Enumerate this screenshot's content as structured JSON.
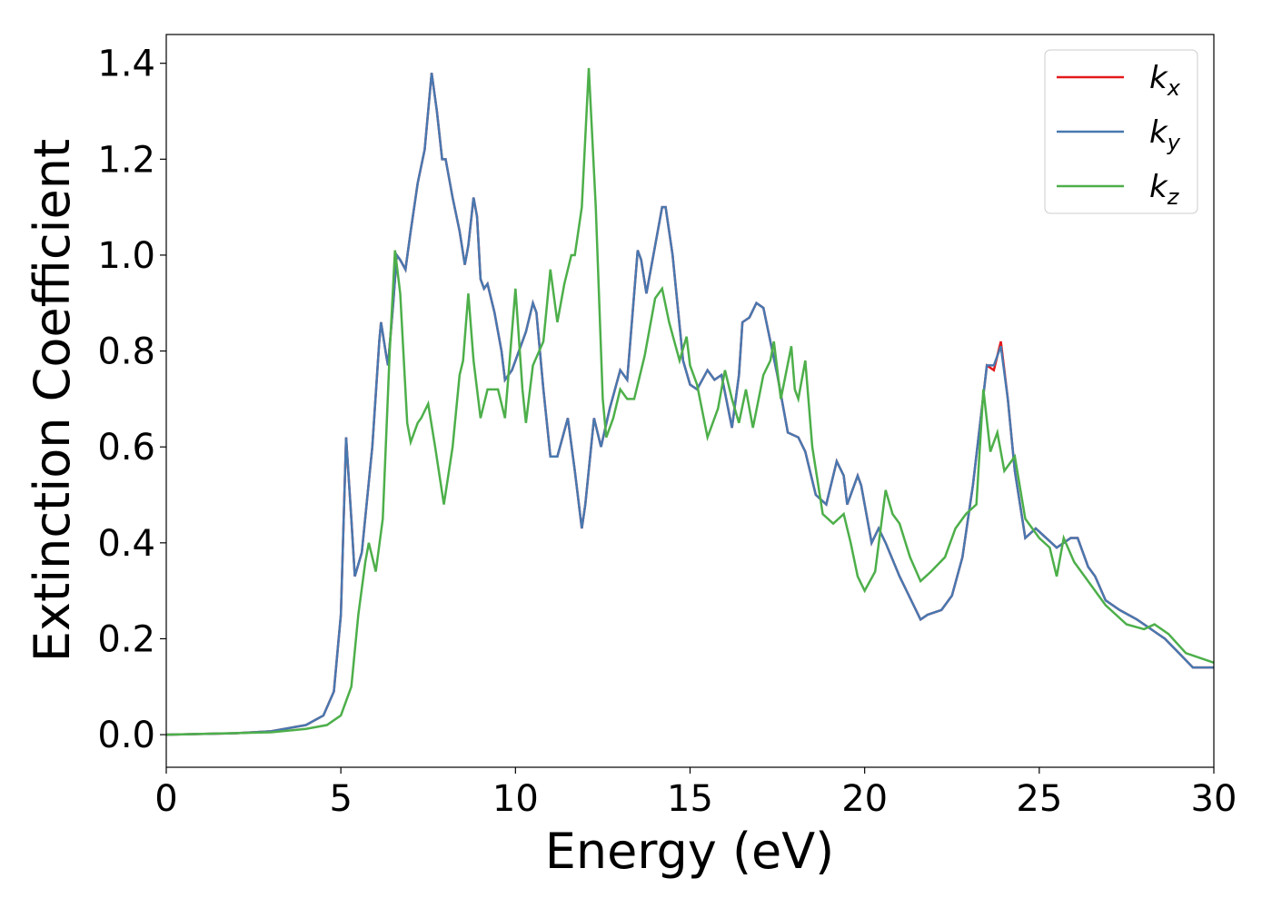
{
  "chart_data": {
    "type": "line",
    "xlabel": "Energy (eV)",
    "ylabel": "Extinction Coefficient",
    "xlim": [
      0,
      30
    ],
    "xticks": [
      0,
      5,
      10,
      15,
      20,
      25,
      30
    ],
    "ylim": [
      -0.068,
      1.46
    ],
    "yticks": [
      {
        "value": 0,
        "label": "0.0"
      },
      0.2,
      0.4,
      0.6,
      0.8,
      {
        "value": 1,
        "label": "1.0"
      },
      1.2,
      1.4
    ],
    "legend": "upper right",
    "series": [
      {
        "name": "kx",
        "color": "#e41a1c",
        "x": [
          0,
          2,
          3,
          4,
          4.5,
          4.8,
          5.0,
          5.15,
          5.3,
          5.4,
          5.6,
          5.9,
          6.1,
          6.15,
          6.3,
          6.35,
          6.5,
          6.6,
          6.7,
          6.85,
          7.0,
          7.2,
          7.4,
          7.6,
          7.75,
          7.9,
          8.0,
          8.2,
          8.4,
          8.55,
          8.65,
          8.8,
          8.9,
          9.0,
          9.1,
          9.2,
          9.4,
          9.6,
          9.7,
          9.9,
          10.1,
          10.3,
          10.5,
          10.6,
          10.8,
          11.0,
          11.2,
          11.5,
          11.7,
          11.9,
          12.0,
          12.25,
          12.45,
          12.7,
          13.0,
          13.2,
          13.5,
          13.6,
          13.75,
          14.0,
          14.2,
          14.3,
          14.5,
          14.8,
          15.0,
          15.2,
          15.5,
          15.7,
          15.9,
          16.2,
          16.4,
          16.5,
          16.7,
          16.9,
          17.1,
          17.3,
          17.5,
          17.8,
          18.1,
          18.3,
          18.6,
          18.9,
          19.2,
          19.4,
          19.5,
          19.8,
          19.9,
          20.2,
          20.4,
          20.6,
          21.0,
          21.2,
          21.6,
          21.8,
          22.2,
          22.5,
          22.8,
          23.1,
          23.5,
          23.7,
          23.9,
          24.1,
          24.3,
          24.6,
          24.9,
          25.2,
          25.5,
          25.9,
          26.1,
          26.4,
          26.6,
          26.9,
          27.3,
          27.8,
          28.2,
          28.6,
          29.0,
          29.4,
          29.8,
          30
        ],
        "values": [
          0,
          0.003,
          0.007,
          0.02,
          0.04,
          0.09,
          0.25,
          0.62,
          0.45,
          0.33,
          0.38,
          0.6,
          0.82,
          0.86,
          0.79,
          0.77,
          0.9,
          1.0,
          0.99,
          0.97,
          1.05,
          1.15,
          1.22,
          1.38,
          1.3,
          1.2,
          1.2,
          1.12,
          1.05,
          0.98,
          1.02,
          1.12,
          1.08,
          0.95,
          0.93,
          0.94,
          0.88,
          0.8,
          0.74,
          0.76,
          0.8,
          0.84,
          0.9,
          0.88,
          0.72,
          0.58,
          0.58,
          0.66,
          0.55,
          0.43,
          0.48,
          0.66,
          0.6,
          0.68,
          0.76,
          0.74,
          1.01,
          0.99,
          0.92,
          1.02,
          1.1,
          1.1,
          1.0,
          0.78,
          0.73,
          0.72,
          0.76,
          0.74,
          0.75,
          0.64,
          0.75,
          0.86,
          0.87,
          0.9,
          0.89,
          0.82,
          0.75,
          0.63,
          0.62,
          0.59,
          0.5,
          0.48,
          0.57,
          0.54,
          0.48,
          0.54,
          0.52,
          0.4,
          0.43,
          0.4,
          0.33,
          0.3,
          0.24,
          0.25,
          0.26,
          0.29,
          0.37,
          0.52,
          0.77,
          0.76,
          0.82,
          0.7,
          0.55,
          0.41,
          0.43,
          0.41,
          0.39,
          0.41,
          0.41,
          0.35,
          0.33,
          0.28,
          0.26,
          0.24,
          0.22,
          0.2,
          0.17,
          0.14,
          0.14,
          0.14
        ]
      },
      {
        "name": "ky",
        "color": "#4878b0",
        "x": [
          0,
          2,
          3,
          4,
          4.5,
          4.8,
          5.0,
          5.15,
          5.3,
          5.4,
          5.6,
          5.9,
          6.1,
          6.15,
          6.3,
          6.35,
          6.5,
          6.6,
          6.7,
          6.85,
          7.0,
          7.2,
          7.4,
          7.6,
          7.75,
          7.9,
          8.0,
          8.2,
          8.4,
          8.55,
          8.65,
          8.8,
          8.9,
          9.0,
          9.1,
          9.2,
          9.4,
          9.6,
          9.7,
          9.9,
          10.1,
          10.3,
          10.5,
          10.6,
          10.8,
          11.0,
          11.2,
          11.5,
          11.7,
          11.9,
          12.0,
          12.25,
          12.45,
          12.7,
          13.0,
          13.2,
          13.5,
          13.6,
          13.75,
          14.0,
          14.2,
          14.3,
          14.5,
          14.8,
          15.0,
          15.2,
          15.5,
          15.7,
          15.9,
          16.2,
          16.4,
          16.5,
          16.7,
          16.9,
          17.1,
          17.3,
          17.5,
          17.8,
          18.1,
          18.3,
          18.6,
          18.9,
          19.2,
          19.4,
          19.5,
          19.8,
          19.9,
          20.2,
          20.4,
          20.6,
          21.0,
          21.2,
          21.6,
          21.8,
          22.2,
          22.5,
          22.8,
          23.1,
          23.5,
          23.7,
          23.9,
          24.1,
          24.3,
          24.6,
          24.9,
          25.2,
          25.5,
          25.9,
          26.1,
          26.4,
          26.6,
          26.9,
          27.3,
          27.8,
          28.2,
          28.6,
          29.0,
          29.4,
          29.8,
          30
        ],
        "values": [
          0,
          0.003,
          0.007,
          0.02,
          0.04,
          0.09,
          0.25,
          0.62,
          0.45,
          0.33,
          0.38,
          0.6,
          0.82,
          0.86,
          0.79,
          0.77,
          0.9,
          1.0,
          0.99,
          0.97,
          1.05,
          1.15,
          1.22,
          1.38,
          1.3,
          1.2,
          1.2,
          1.12,
          1.05,
          0.98,
          1.02,
          1.12,
          1.08,
          0.95,
          0.93,
          0.94,
          0.88,
          0.8,
          0.74,
          0.76,
          0.8,
          0.84,
          0.9,
          0.88,
          0.72,
          0.58,
          0.58,
          0.66,
          0.55,
          0.43,
          0.48,
          0.66,
          0.6,
          0.68,
          0.76,
          0.74,
          1.01,
          0.99,
          0.92,
          1.02,
          1.1,
          1.1,
          1.0,
          0.78,
          0.73,
          0.72,
          0.76,
          0.74,
          0.75,
          0.64,
          0.75,
          0.86,
          0.87,
          0.9,
          0.89,
          0.82,
          0.75,
          0.63,
          0.62,
          0.59,
          0.5,
          0.48,
          0.57,
          0.54,
          0.48,
          0.54,
          0.52,
          0.4,
          0.43,
          0.4,
          0.33,
          0.3,
          0.24,
          0.25,
          0.26,
          0.29,
          0.37,
          0.52,
          0.77,
          0.77,
          0.81,
          0.7,
          0.55,
          0.41,
          0.43,
          0.41,
          0.39,
          0.41,
          0.41,
          0.35,
          0.33,
          0.28,
          0.26,
          0.24,
          0.22,
          0.2,
          0.17,
          0.14,
          0.14,
          0.14
        ]
      },
      {
        "name": "kz",
        "color": "#4daf4a",
        "x": [
          0,
          3,
          4,
          4.6,
          5.0,
          5.3,
          5.5,
          5.7,
          5.8,
          5.9,
          6.0,
          6.2,
          6.4,
          6.55,
          6.7,
          6.9,
          7.0,
          7.2,
          7.3,
          7.5,
          7.7,
          7.95,
          8.2,
          8.4,
          8.5,
          8.65,
          8.8,
          9.0,
          9.2,
          9.5,
          9.7,
          10.0,
          10.2,
          10.3,
          10.5,
          10.8,
          11.0,
          11.2,
          11.4,
          11.6,
          11.7,
          11.9,
          12.1,
          12.3,
          12.5,
          12.6,
          12.8,
          13.0,
          13.2,
          13.4,
          13.7,
          14.0,
          14.2,
          14.4,
          14.7,
          14.9,
          15.0,
          15.2,
          15.5,
          15.8,
          16.0,
          16.2,
          16.4,
          16.6,
          16.8,
          17.1,
          17.3,
          17.4,
          17.6,
          17.9,
          18.0,
          18.1,
          18.3,
          18.5,
          18.8,
          19.1,
          19.4,
          19.6,
          19.8,
          20.0,
          20.3,
          20.6,
          20.8,
          21.0,
          21.3,
          21.6,
          21.9,
          22.3,
          22.6,
          22.9,
          23.2,
          23.4,
          23.6,
          23.8,
          24.0,
          24.3,
          24.6,
          25.0,
          25.3,
          25.5,
          25.7,
          26.0,
          26.4,
          26.9,
          27.5,
          28.0,
          28.3,
          28.7,
          29.2,
          29.6,
          30
        ],
        "values": [
          0,
          0.005,
          0.012,
          0.02,
          0.04,
          0.1,
          0.25,
          0.36,
          0.4,
          0.37,
          0.34,
          0.45,
          0.8,
          1.01,
          0.92,
          0.65,
          0.61,
          0.65,
          0.66,
          0.69,
          0.6,
          0.48,
          0.6,
          0.75,
          0.78,
          0.92,
          0.78,
          0.66,
          0.72,
          0.72,
          0.66,
          0.93,
          0.72,
          0.65,
          0.77,
          0.82,
          0.97,
          0.86,
          0.94,
          1.0,
          1.0,
          1.1,
          1.39,
          1.1,
          0.7,
          0.62,
          0.66,
          0.72,
          0.7,
          0.7,
          0.79,
          0.91,
          0.93,
          0.86,
          0.78,
          0.83,
          0.77,
          0.73,
          0.62,
          0.68,
          0.76,
          0.7,
          0.65,
          0.72,
          0.64,
          0.75,
          0.78,
          0.82,
          0.7,
          0.81,
          0.72,
          0.7,
          0.78,
          0.6,
          0.46,
          0.44,
          0.46,
          0.4,
          0.33,
          0.3,
          0.34,
          0.51,
          0.46,
          0.44,
          0.37,
          0.32,
          0.34,
          0.37,
          0.43,
          0.46,
          0.48,
          0.72,
          0.59,
          0.63,
          0.55,
          0.58,
          0.45,
          0.41,
          0.39,
          0.33,
          0.41,
          0.36,
          0.32,
          0.27,
          0.23,
          0.22,
          0.23,
          0.21,
          0.17,
          0.16,
          0.15
        ]
      }
    ]
  }
}
